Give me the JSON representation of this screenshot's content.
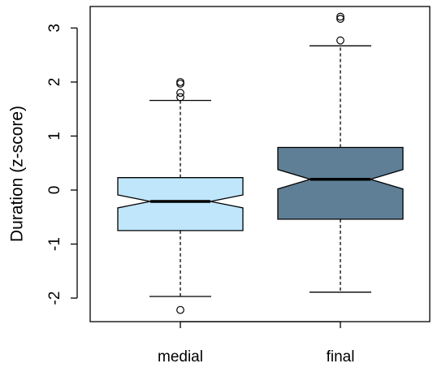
{
  "chart_data": {
    "type": "boxplot",
    "title": "",
    "xlabel": "",
    "ylabel": "Duration (z-score)",
    "ylim": [
      -2.5,
      3.4
    ],
    "yticks": [
      -2,
      -1,
      0,
      1,
      2,
      3
    ],
    "notched": true,
    "grid": false,
    "categories": [
      "medial",
      "final"
    ],
    "boxes": [
      {
        "category": "medial",
        "color": "#bfe6fb",
        "whisker_low": -1.97,
        "q1": -0.75,
        "median": -0.21,
        "q3": 0.23,
        "whisker_high": 1.66,
        "notch_low": -0.33,
        "notch_high": -0.09,
        "outliers": [
          -2.22,
          1.72,
          1.8,
          1.97,
          2.0
        ]
      },
      {
        "category": "final",
        "color": "#5e7f96",
        "whisker_low": -1.89,
        "q1": -0.54,
        "median": 0.2,
        "q3": 0.79,
        "whisker_high": 2.67,
        "notch_low": 0.02,
        "notch_high": 0.38,
        "outliers": [
          2.77,
          3.17,
          3.21
        ]
      }
    ]
  }
}
